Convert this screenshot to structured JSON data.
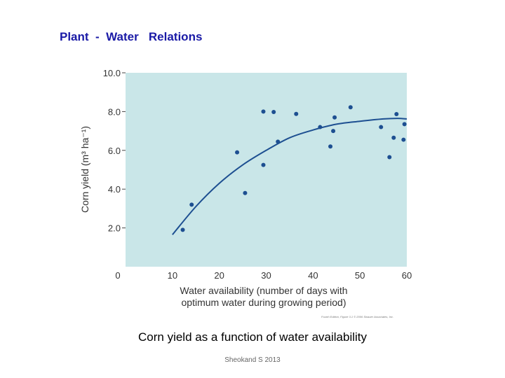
{
  "slide": {
    "title": "Plant  -  Water   Relations",
    "caption": "Corn yield as a function of water availability",
    "credit": "Sheokand S 2013",
    "figure_credit": "Fourth Edition, Figure 3.1  © 2006 Sinauer Associates, Inc."
  },
  "colors": {
    "plot_bg": "#c9e6e8",
    "points": "#1d4f91",
    "curve": "#1d4f91"
  },
  "chart_data": {
    "type": "scatter",
    "xlabel": "Water availability (number of days with optimum water during growing period)",
    "xlabel_lines": [
      "Water availability (number of days with",
      "optimum water during growing period)"
    ],
    "ylabel": "Corn yield (m³ ha⁻¹)",
    "xlim": [
      0,
      60
    ],
    "ylim": [
      0,
      10
    ],
    "xticks": [
      {
        "v": 0,
        "t": "0"
      },
      {
        "v": 10,
        "t": "10"
      },
      {
        "v": 20,
        "t": "20"
      },
      {
        "v": 30,
        "t": "30"
      },
      {
        "v": 40,
        "t": "40"
      },
      {
        "v": 50,
        "t": "50"
      },
      {
        "v": 60,
        "t": "60"
      }
    ],
    "yticks": [
      {
        "v": 2,
        "t": "2.0"
      },
      {
        "v": 4,
        "t": "4.0"
      },
      {
        "v": 6,
        "t": "6.0"
      },
      {
        "v": 8,
        "t": "8.0"
      },
      {
        "v": 10,
        "t": "10.0"
      }
    ],
    "points": [
      [
        12.2,
        1.9
      ],
      [
        14.1,
        3.2
      ],
      [
        23.8,
        5.9
      ],
      [
        25.5,
        3.8
      ],
      [
        29.4,
        8.0
      ],
      [
        29.4,
        5.25
      ],
      [
        31.6,
        7.98
      ],
      [
        32.5,
        6.45
      ],
      [
        36.4,
        7.88
      ],
      [
        41.5,
        7.2
      ],
      [
        43.7,
        6.2
      ],
      [
        44.3,
        7.0
      ],
      [
        44.6,
        7.7
      ],
      [
        48.0,
        8.22
      ],
      [
        54.5,
        7.2
      ],
      [
        56.3,
        5.65
      ],
      [
        57.2,
        6.65
      ],
      [
        57.8,
        7.87
      ],
      [
        59.3,
        6.55
      ],
      [
        59.5,
        7.35
      ]
    ],
    "fit_curve": [
      [
        10,
        1.65
      ],
      [
        15,
        3.1
      ],
      [
        20,
        4.3
      ],
      [
        25,
        5.25
      ],
      [
        30,
        6.0
      ],
      [
        35,
        6.65
      ],
      [
        40,
        7.05
      ],
      [
        45,
        7.35
      ],
      [
        50,
        7.5
      ],
      [
        55,
        7.62
      ],
      [
        58,
        7.65
      ],
      [
        60,
        7.62
      ]
    ]
  }
}
